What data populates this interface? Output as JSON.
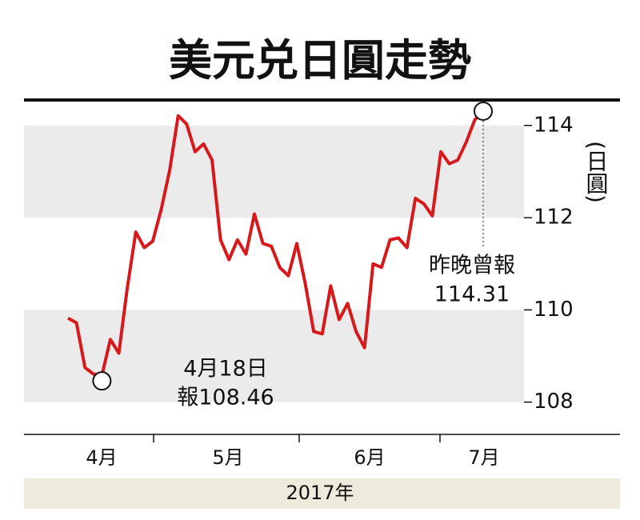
{
  "chart_data": {
    "type": "line",
    "title": "美元兑日圓走勢",
    "y_label": "(日圓)",
    "x_labels": [
      "4月",
      "5月",
      "6月",
      "7月"
    ],
    "x_title": "2017年",
    "series": [
      {
        "name": "USD/JPY",
        "color": "#d7191c",
        "values": [
          109.82,
          109.72,
          108.75,
          108.61,
          108.58,
          109.36,
          109.06,
          110.48,
          111.69,
          111.35,
          111.49,
          112.18,
          113.03,
          114.21,
          114.03,
          113.43,
          113.6,
          113.25,
          111.52,
          111.09,
          111.52,
          111.21,
          112.08,
          111.44,
          111.38,
          110.92,
          110.74,
          111.44,
          110.57,
          109.53,
          109.48,
          110.52,
          109.79,
          110.14,
          109.53,
          109.18,
          111.0,
          110.92,
          111.52,
          111.56,
          111.35,
          112.42,
          112.3,
          112.04,
          113.43,
          113.17,
          113.25,
          113.64,
          114.12,
          114.31
        ]
      }
    ],
    "annotations": [
      {
        "lines": [
          "4月18日",
          "報108.46"
        ],
        "value": 108.46
      },
      {
        "lines": [
          "昨晚曾報",
          "114.31"
        ],
        "value": 114.31
      }
    ],
    "ylim": [
      107.3,
      114.5
    ],
    "yticks": [
      108,
      110,
      112,
      114
    ],
    "bands": true
  }
}
